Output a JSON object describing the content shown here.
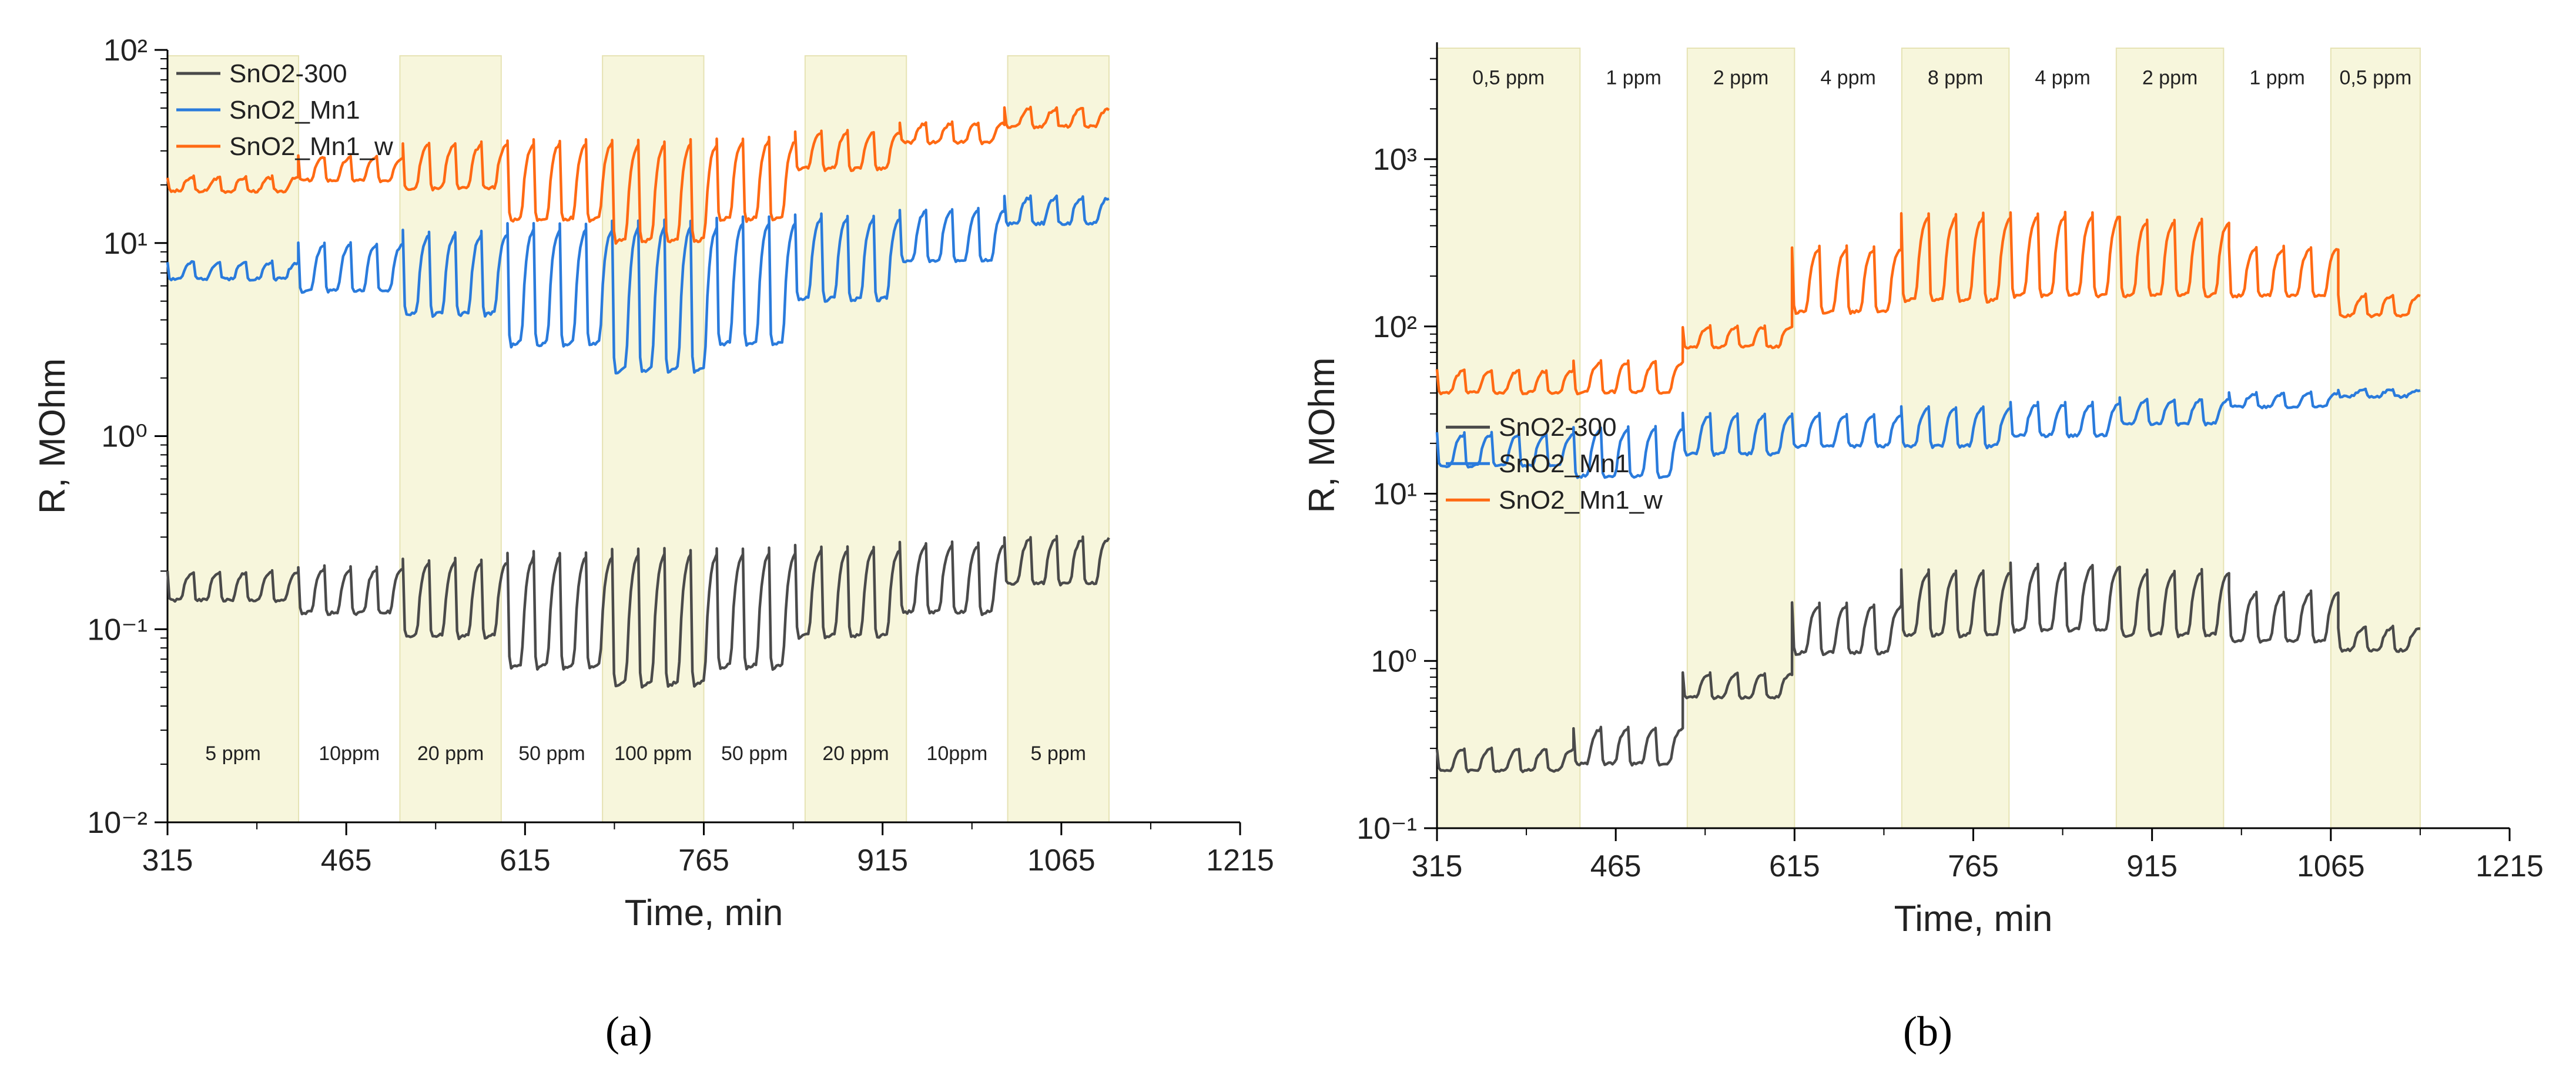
{
  "colors": {
    "SnO2-300": "#4a4a4a",
    "SnO2_Mn1": "#2a7bdc",
    "SnO2_Mn1_w": "#ff6a13",
    "band": "#f7f6dc"
  },
  "chart_data": [
    {
      "type": "line",
      "panel_label": "(a)",
      "xlabel": "Time, min",
      "ylabel": "R, MOhm",
      "xscale": "linear",
      "yscale": "log",
      "xlim": [
        315,
        1215
      ],
      "ylim": [
        0.01,
        100
      ],
      "xticks": [
        "315",
        "465",
        "615",
        "765",
        "915",
        "1065",
        "1215"
      ],
      "ytick_values": [
        0.01,
        0.1,
        1,
        10,
        100
      ],
      "legend_position": "top-left",
      "bands": [
        {
          "label": "5 ppm",
          "from": 315,
          "to": 425,
          "shaded": true
        },
        {
          "label": "10ppm",
          "from": 425,
          "to": 510,
          "shaded": false
        },
        {
          "label": "20 ppm",
          "from": 510,
          "to": 595,
          "shaded": true
        },
        {
          "label": "50 ppm",
          "from": 595,
          "to": 680,
          "shaded": false
        },
        {
          "label": "100 ppm",
          "from": 680,
          "to": 765,
          "shaded": true
        },
        {
          "label": "50 ppm",
          "from": 765,
          "to": 850,
          "shaded": false
        },
        {
          "label": "20 ppm",
          "from": 850,
          "to": 935,
          "shaded": true
        },
        {
          "label": "10ppm",
          "from": 935,
          "to": 1020,
          "shaded": false
        },
        {
          "label": "5 ppm",
          "from": 1020,
          "to": 1105,
          "shaded": true
        }
      ],
      "band_label_y": 0.021,
      "series": [
        {
          "name": "SnO2-300",
          "color_key": "SnO2-300",
          "periods": 36,
          "start": 315,
          "end": 1105,
          "seed": 1,
          "segments": [
            {
              "from": 315,
              "to": 425,
              "base": 0.2,
              "dip": 0.14
            },
            {
              "from": 425,
              "to": 510,
              "base": 0.21,
              "dip": 0.12
            },
            {
              "from": 510,
              "to": 595,
              "base": 0.23,
              "dip": 0.09
            },
            {
              "from": 595,
              "to": 680,
              "base": 0.25,
              "dip": 0.062
            },
            {
              "from": 680,
              "to": 765,
              "base": 0.26,
              "dip": 0.05
            },
            {
              "from": 765,
              "to": 850,
              "base": 0.26,
              "dip": 0.062
            },
            {
              "from": 850,
              "to": 935,
              "base": 0.27,
              "dip": 0.09
            },
            {
              "from": 935,
              "to": 1020,
              "base": 0.28,
              "dip": 0.12
            },
            {
              "from": 1020,
              "to": 1105,
              "base": 0.3,
              "dip": 0.17
            }
          ]
        },
        {
          "name": "SnO2_Mn1",
          "color_key": "SnO2_Mn1",
          "periods": 36,
          "start": 315,
          "end": 1105,
          "seed": 2,
          "segments": [
            {
              "from": 315,
              "to": 425,
              "base": 8.0,
              "dip": 6.5
            },
            {
              "from": 425,
              "to": 510,
              "base": 10.0,
              "dip": 5.6
            },
            {
              "from": 510,
              "to": 595,
              "base": 11.5,
              "dip": 4.2
            },
            {
              "from": 595,
              "to": 680,
              "base": 12.5,
              "dip": 2.9
            },
            {
              "from": 680,
              "to": 765,
              "base": 13.0,
              "dip": 2.1
            },
            {
              "from": 765,
              "to": 850,
              "base": 13.5,
              "dip": 2.9
            },
            {
              "from": 850,
              "to": 935,
              "base": 14.0,
              "dip": 5.0
            },
            {
              "from": 935,
              "to": 1020,
              "base": 15.0,
              "dip": 8.0
            },
            {
              "from": 1020,
              "to": 1105,
              "base": 17.5,
              "dip": 12.5
            }
          ]
        },
        {
          "name": "SnO2_Mn1_w",
          "color_key": "SnO2_Mn1_w",
          "periods": 36,
          "start": 315,
          "end": 1105,
          "seed": 3,
          "segments": [
            {
              "from": 315,
              "to": 425,
              "base": 22.0,
              "dip": 18.5
            },
            {
              "from": 425,
              "to": 510,
              "base": 28.0,
              "dip": 21.0
            },
            {
              "from": 510,
              "to": 595,
              "base": 33.0,
              "dip": 19.0
            },
            {
              "from": 595,
              "to": 680,
              "base": 34.0,
              "dip": 13.0
            },
            {
              "from": 680,
              "to": 765,
              "base": 34.0,
              "dip": 10.0
            },
            {
              "from": 765,
              "to": 850,
              "base": 35.0,
              "dip": 13.0
            },
            {
              "from": 850,
              "to": 935,
              "base": 38.0,
              "dip": 24.0
            },
            {
              "from": 935,
              "to": 1020,
              "base": 42.0,
              "dip": 33.0
            },
            {
              "from": 1020,
              "to": 1105,
              "base": 50.0,
              "dip": 40.0
            }
          ]
        }
      ]
    },
    {
      "type": "line",
      "panel_label": "(b)",
      "xlabel": "Time, min",
      "ylabel": "R, MOhm",
      "xscale": "linear",
      "yscale": "log",
      "xlim": [
        315,
        1215
      ],
      "ylim": [
        0.1,
        5000
      ],
      "xticks": [
        "315",
        "465",
        "615",
        "765",
        "915",
        "1065",
        "1215"
      ],
      "ytick_values": [
        0.1,
        1,
        10,
        100,
        1000
      ],
      "legend_position": "middle-left",
      "bands": [
        {
          "label": "0,5 ppm",
          "from": 315,
          "to": 435,
          "shaded": true
        },
        {
          "label": "1 ppm",
          "from": 435,
          "to": 525,
          "shaded": false
        },
        {
          "label": "2 ppm",
          "from": 525,
          "to": 615,
          "shaded": true
        },
        {
          "label": "4 ppm",
          "from": 615,
          "to": 705,
          "shaded": false
        },
        {
          "label": "8 ppm",
          "from": 705,
          "to": 795,
          "shaded": true
        },
        {
          "label": "4 ppm",
          "from": 795,
          "to": 885,
          "shaded": false
        },
        {
          "label": "2 ppm",
          "from": 885,
          "to": 975,
          "shaded": true
        },
        {
          "label": "1 ppm",
          "from": 975,
          "to": 1065,
          "shaded": false
        },
        {
          "label": "0,5 ppm",
          "from": 1065,
          "to": 1140,
          "shaded": true
        }
      ],
      "band_label_y": 2800,
      "series": [
        {
          "name": "SnO2-300",
          "color_key": "SnO2-300",
          "periods": 36,
          "start": 315,
          "end": 1140,
          "seed": 4,
          "segments": [
            {
              "from": 315,
              "to": 435,
              "base": 0.3,
              "dip": 0.22
            },
            {
              "from": 435,
              "to": 525,
              "base": 0.4,
              "dip": 0.24
            },
            {
              "from": 525,
              "to": 615,
              "base": 0.85,
              "dip": 0.6
            },
            {
              "from": 615,
              "to": 705,
              "base": 2.2,
              "dip": 1.1
            },
            {
              "from": 705,
              "to": 795,
              "base": 3.5,
              "dip": 1.4
            },
            {
              "from": 795,
              "to": 885,
              "base": 3.8,
              "dip": 1.5
            },
            {
              "from": 885,
              "to": 975,
              "base": 3.5,
              "dip": 1.4
            },
            {
              "from": 975,
              "to": 1065,
              "base": 2.6,
              "dip": 1.3
            },
            {
              "from": 1065,
              "to": 1140,
              "base": 1.6,
              "dip": 1.15
            }
          ]
        },
        {
          "name": "SnO2_Mn1",
          "color_key": "SnO2_Mn1",
          "periods": 36,
          "start": 315,
          "end": 1140,
          "seed": 5,
          "segments": [
            {
              "from": 315,
              "to": 435,
              "base": 23.0,
              "dip": 14.5
            },
            {
              "from": 435,
              "to": 525,
              "base": 25.0,
              "dip": 12.5
            },
            {
              "from": 525,
              "to": 615,
              "base": 30.0,
              "dip": 17.0
            },
            {
              "from": 615,
              "to": 705,
              "base": 30.0,
              "dip": 19.0
            },
            {
              "from": 705,
              "to": 795,
              "base": 33.0,
              "dip": 19.0
            },
            {
              "from": 795,
              "to": 885,
              "base": 35.0,
              "dip": 22.0
            },
            {
              "from": 885,
              "to": 975,
              "base": 37.0,
              "dip": 26.0
            },
            {
              "from": 975,
              "to": 1065,
              "base": 40.0,
              "dip": 33.0
            },
            {
              "from": 1065,
              "to": 1140,
              "base": 42.0,
              "dip": 38.0
            }
          ]
        },
        {
          "name": "SnO2_Mn1_w",
          "color_key": "SnO2_Mn1_w",
          "periods": 36,
          "start": 315,
          "end": 1140,
          "seed": 6,
          "segments": [
            {
              "from": 315,
              "to": 435,
              "base": 55.0,
              "dip": 40.0
            },
            {
              "from": 435,
              "to": 525,
              "base": 62.0,
              "dip": 40.0
            },
            {
              "from": 525,
              "to": 615,
              "base": 100.0,
              "dip": 75.0
            },
            {
              "from": 615,
              "to": 705,
              "base": 300.0,
              "dip": 120.0
            },
            {
              "from": 705,
              "to": 795,
              "base": 470.0,
              "dip": 140.0
            },
            {
              "from": 795,
              "to": 885,
              "base": 480.0,
              "dip": 150.0
            },
            {
              "from": 885,
              "to": 975,
              "base": 440.0,
              "dip": 150.0
            },
            {
              "from": 975,
              "to": 1065,
              "base": 300.0,
              "dip": 150.0
            },
            {
              "from": 1065,
              "to": 1140,
              "base": 155.0,
              "dip": 115.0
            }
          ]
        }
      ]
    }
  ]
}
